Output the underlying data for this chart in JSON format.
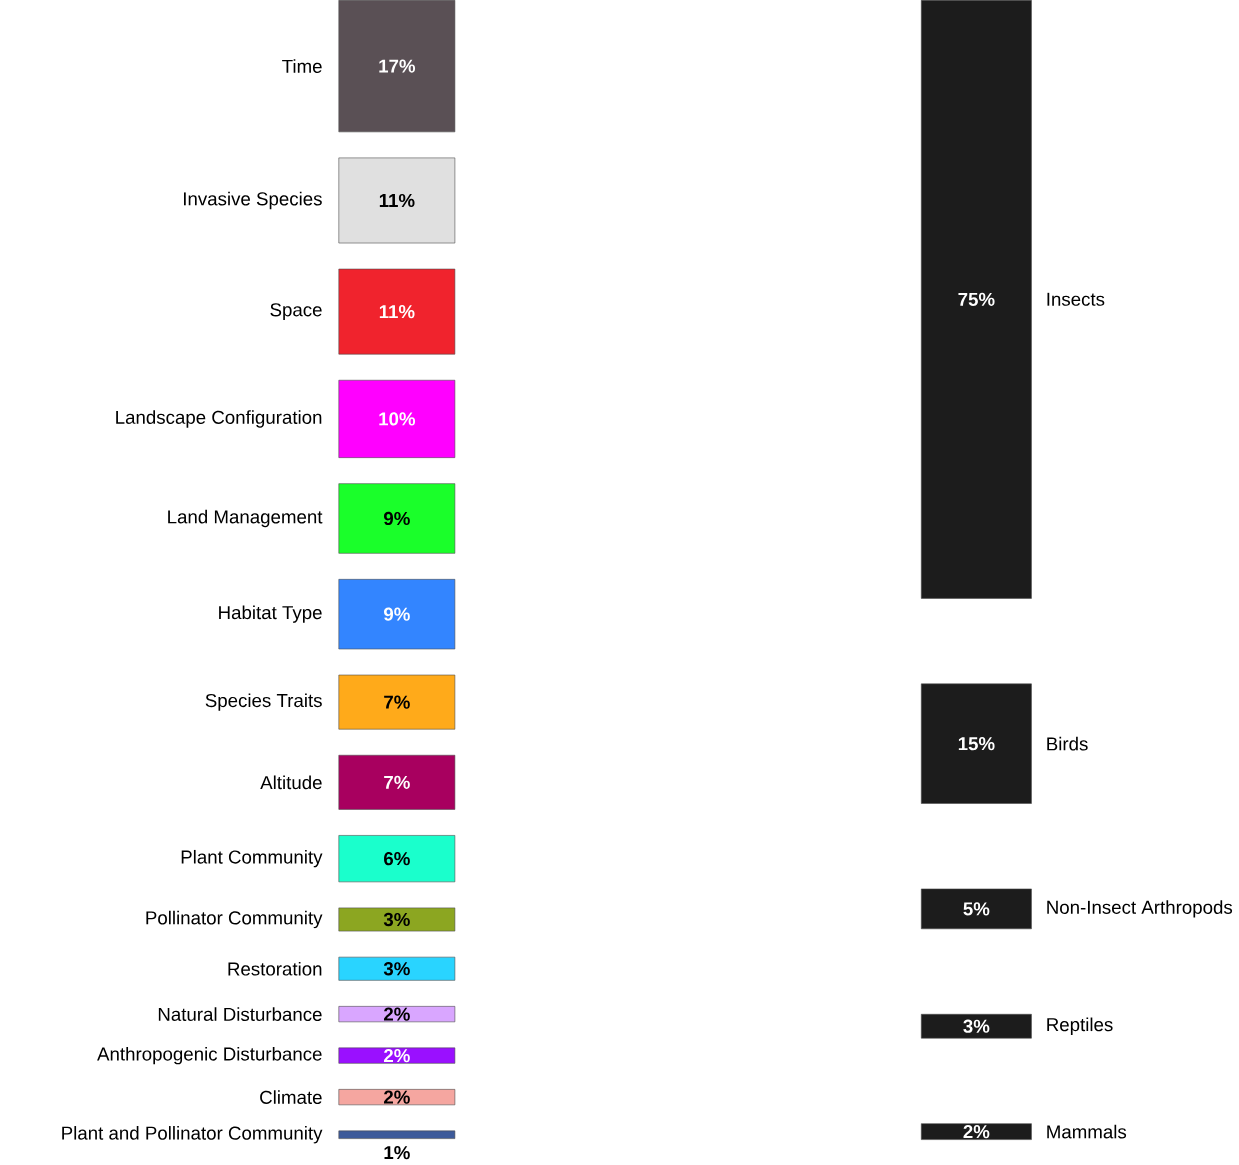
{
  "chart_data": [
    {
      "type": "other",
      "categories": [
        "Time",
        "Invasive Species",
        "Space",
        "Landscape Configuration",
        "Land Management",
        "Habitat Type",
        "Species Traits",
        "Altitude",
        "Plant Community",
        "Pollinator Community",
        "Restoration",
        "Natural Disturbance",
        "Anthropogenic Disturbance",
        "Climate",
        "Plant and Pollinator Community"
      ],
      "values": [
        17,
        11,
        11,
        10,
        9,
        9,
        7,
        7,
        6,
        3,
        3,
        2,
        2,
        2,
        1
      ],
      "value_labels": [
        "17%",
        "11%",
        "11%",
        "10%",
        "9%",
        "9%",
        "7%",
        "7%",
        "6%",
        "3%",
        "3%",
        "2%",
        "2%",
        "2%",
        "1%"
      ],
      "colors": [
        "#5a5055",
        "#e0e0e0",
        "#f0232d",
        "#ff00ff",
        "#1aff2a",
        "#3385ff",
        "#ffaa1a",
        "#a8005f",
        "#1affcc",
        "#8ca621",
        "#29d4ff",
        "#d9a6ff",
        "#9a10ff",
        "#f5a6a0",
        "#3d5a9a"
      ]
    },
    {
      "type": "other",
      "categories": [
        "Insects",
        "Birds",
        "Non-Insect Arthropods",
        "Reptiles",
        "Mammals"
      ],
      "values": [
        75,
        15,
        5,
        3,
        2
      ],
      "value_labels": [
        "75%",
        "15%",
        "5%",
        "3%",
        "2%"
      ],
      "colors": [
        "#1c1c1c",
        "#1c1c1c",
        "#1c1c1c",
        "#1c1c1c",
        "#1c1c1c"
      ]
    }
  ]
}
